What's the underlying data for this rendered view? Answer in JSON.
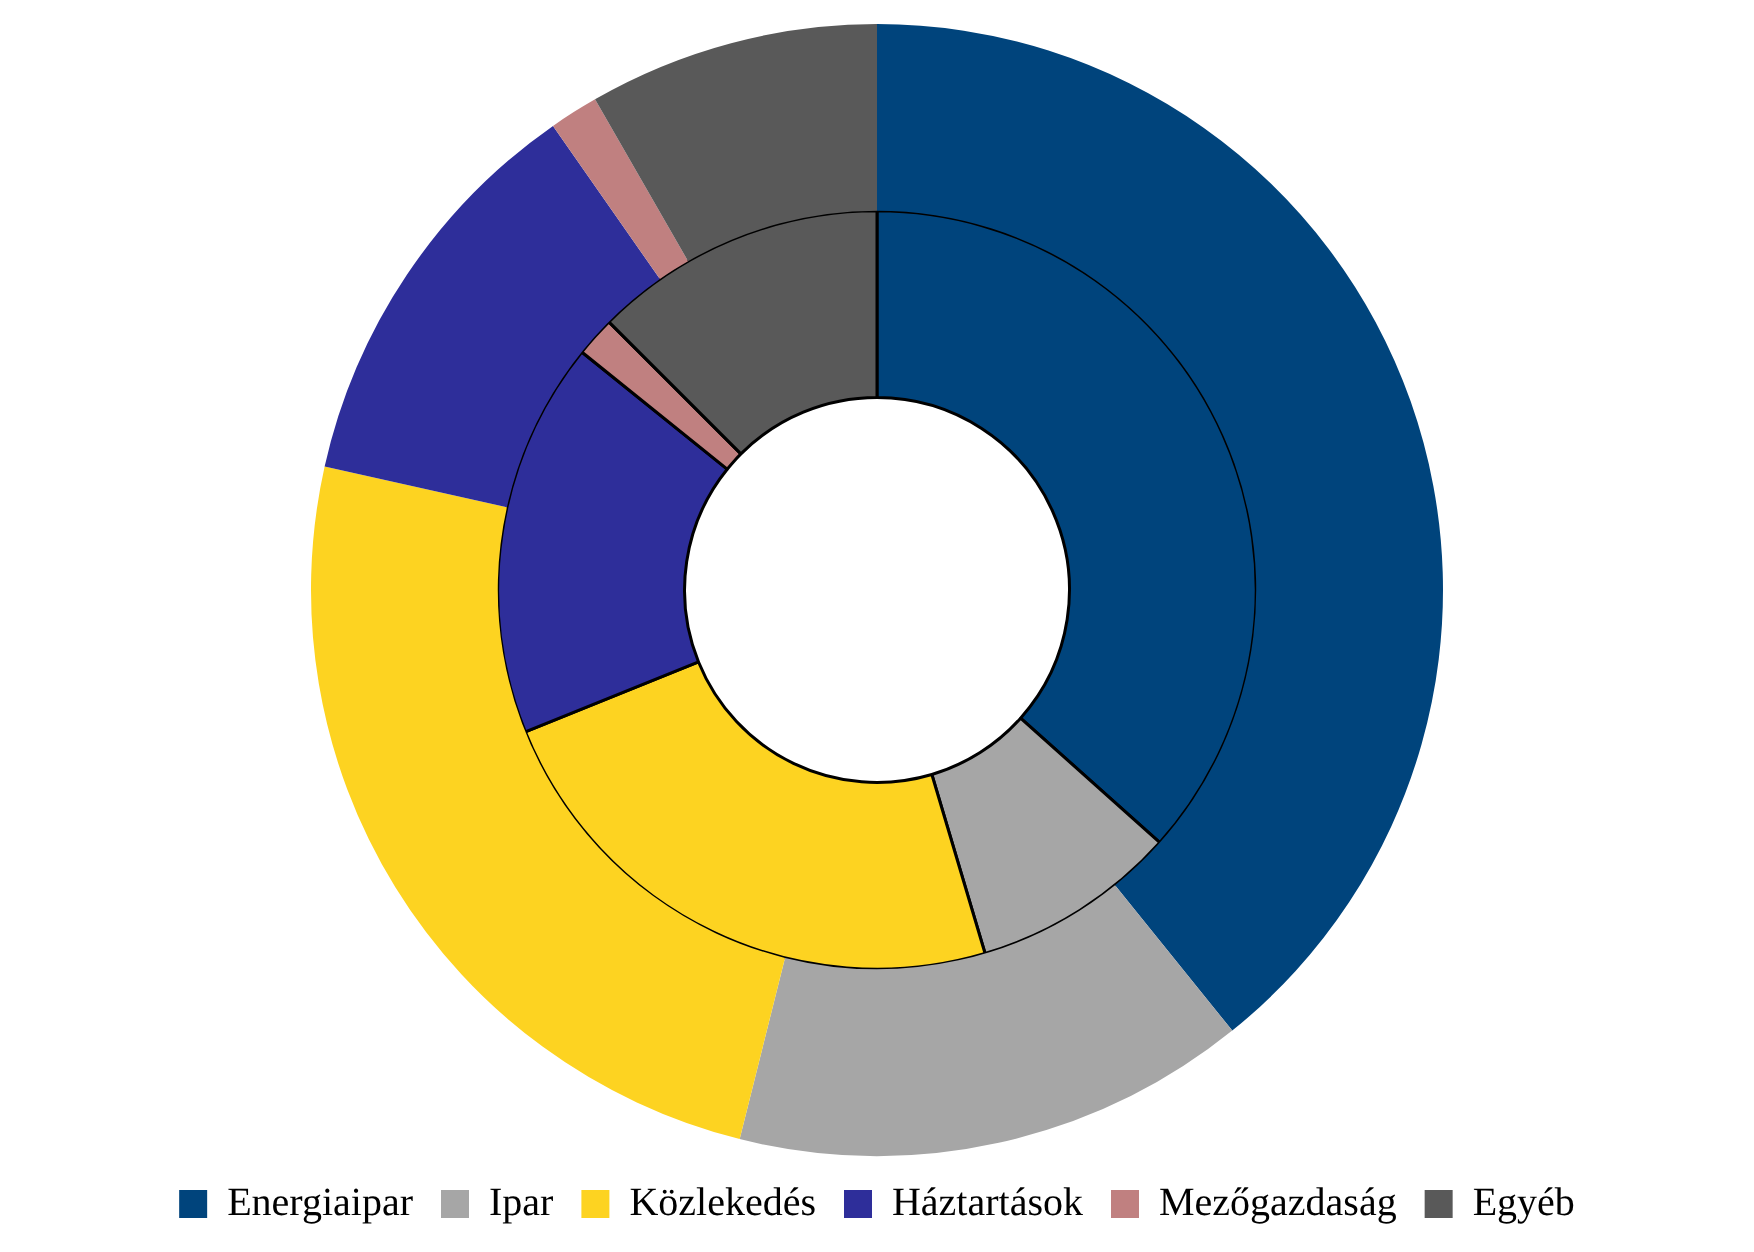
{
  "chart_data": {
    "type": "donut",
    "categories": [
      "Energiaipar",
      "Ipar",
      "Közlekedés",
      "Háztartások",
      "Mezőgazdaság",
      "Egyéb"
    ],
    "colors": [
      "#00447c",
      "#a6a6a6",
      "#fdd321",
      "#2e2e9a",
      "#c08080",
      "#595959"
    ],
    "series": [
      {
        "values": [
          39.2,
          14.7,
          24.6,
          11.8,
          1.4,
          8.3
        ]
      },
      {
        "values": [
          36.6,
          8.8,
          23.5,
          16.9,
          1.7,
          12.5
        ]
      }
    ],
    "legend": "bottom"
  }
}
